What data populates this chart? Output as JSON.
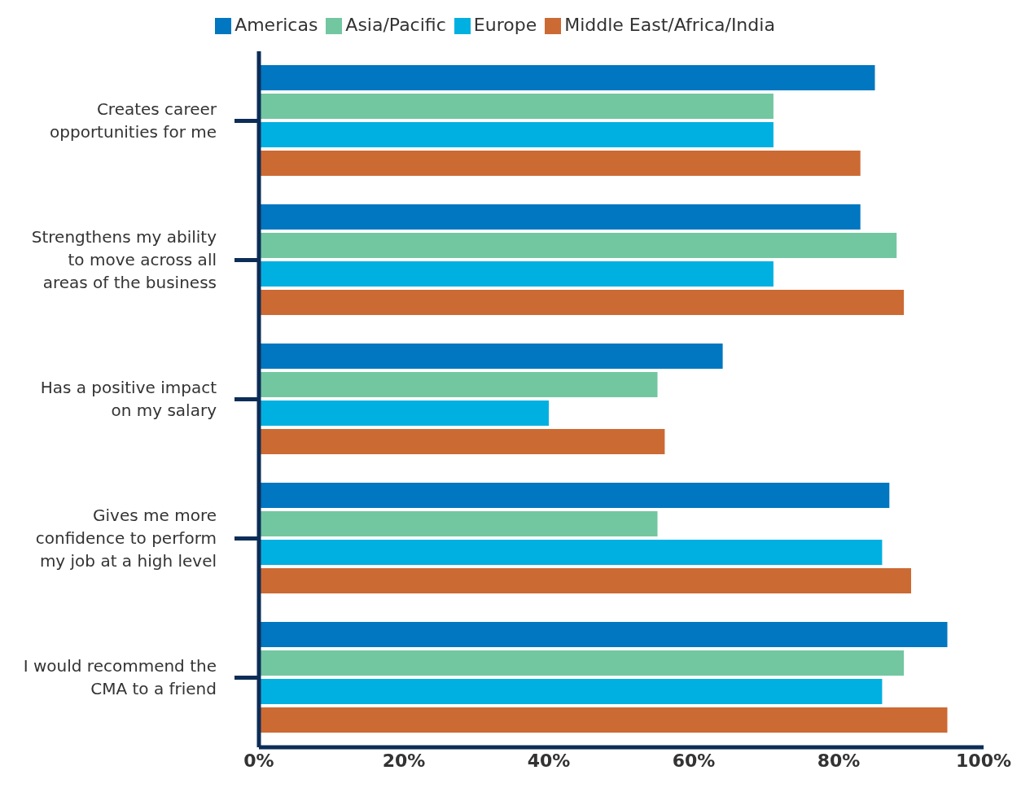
{
  "chart_data": {
    "type": "bar",
    "orientation": "horizontal",
    "categories": [
      "Creates career opportunities for me",
      "Strengthens my ability to move across all areas of the business",
      "Has a positive impact on my salary",
      "Gives me more confidence to perform my job at a high level",
      "I would recommend the CMA to a friend"
    ],
    "series": [
      {
        "name": "Americas",
        "color": "#0077c0",
        "values": [
          85,
          83,
          64,
          87,
          95
        ]
      },
      {
        "name": "Asia/Pacific",
        "color": "#72c7a0",
        "values": [
          71,
          88,
          55,
          55,
          89
        ]
      },
      {
        "name": "Europe",
        "color": "#00b0e0",
        "values": [
          71,
          71,
          40,
          86,
          86
        ]
      },
      {
        "name": "Middle East/Africa/India",
        "color": "#cc6a33",
        "values": [
          83,
          89,
          56,
          90,
          95
        ]
      }
    ],
    "xlim": [
      0,
      100
    ],
    "xticks": [
      {
        "value": 0,
        "label": "0%"
      },
      {
        "value": 20,
        "label": "20%"
      },
      {
        "value": 40,
        "label": "40%"
      },
      {
        "value": 60,
        "label": "60%"
      },
      {
        "value": 80,
        "label": "80%"
      },
      {
        "value": 100,
        "label": "100%"
      }
    ],
    "grid": false,
    "legend": "top"
  }
}
